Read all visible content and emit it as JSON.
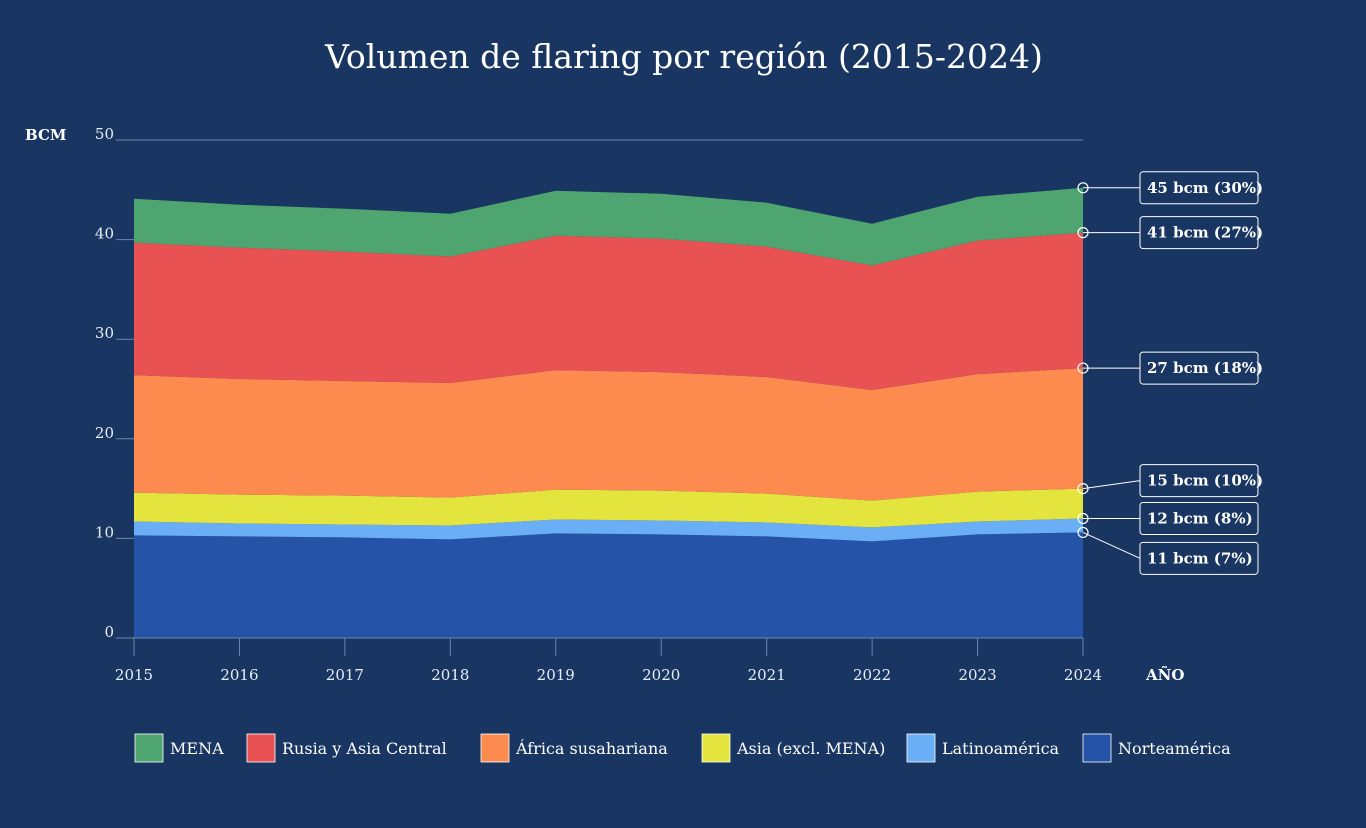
{
  "chart_data": {
    "type": "area",
    "stacked": true,
    "title": "Volumen de flaring por región (2015-2024)",
    "ylabel": "BCM",
    "xlabel": "AÑO",
    "ylim": [
      0,
      50
    ],
    "yticks": [
      0,
      10,
      20,
      30,
      40,
      50
    ],
    "grid": "top line only",
    "legend_position": "bottom",
    "x": [
      "2015",
      "2016",
      "2017",
      "2018",
      "2019",
      "2020",
      "2021",
      "2022",
      "2023",
      "2024"
    ],
    "series": [
      {
        "name": "Norteamérica",
        "color": "#2553a8",
        "values": [
          10.3,
          10.2,
          10.1,
          9.9,
          10.5,
          10.4,
          10.2,
          9.7,
          10.4,
          10.6
        ]
      },
      {
        "name": "Latinoamérica",
        "color": "#6aaef5",
        "values": [
          1.4,
          1.3,
          1.3,
          1.4,
          1.4,
          1.4,
          1.4,
          1.4,
          1.3,
          1.4
        ]
      },
      {
        "name": "Asia (excl. MENA)",
        "color": "#e4e43f",
        "values": [
          2.9,
          2.9,
          2.9,
          2.8,
          3.0,
          3.0,
          2.9,
          2.7,
          3.0,
          3.0
        ]
      },
      {
        "name": "África susahariana",
        "color": "#fd8b50",
        "values": [
          11.8,
          11.6,
          11.5,
          11.5,
          12.0,
          11.9,
          11.7,
          11.1,
          11.8,
          12.1
        ]
      },
      {
        "name": "Rusia y Asia Central",
        "color": "#e85252",
        "values": [
          13.3,
          13.2,
          13.0,
          12.7,
          13.5,
          13.4,
          13.1,
          12.5,
          13.4,
          13.6
        ]
      },
      {
        "name": "MENA",
        "color": "#4ea56f",
        "values": [
          4.4,
          4.3,
          4.3,
          4.3,
          4.5,
          4.5,
          4.4,
          4.2,
          4.4,
          4.5
        ]
      }
    ],
    "legend": [
      {
        "name": "MENA",
        "color": "#4ea56f"
      },
      {
        "name": "Rusia y Asia Central",
        "color": "#e85252"
      },
      {
        "name": "África susahariana",
        "color": "#fd8b50"
      },
      {
        "name": "Asia (excl. MENA)",
        "color": "#e4e43f"
      },
      {
        "name": "Latinoamérica",
        "color": "#6aaef5"
      },
      {
        "name": "Norteamérica",
        "color": "#2553a8"
      }
    ],
    "annotations": [
      {
        "text": "45 bcm (30%)",
        "value": 45.2,
        "box_value": 45.2
      },
      {
        "text": "41 bcm (27%)",
        "value": 40.7,
        "box_value": 40.7
      },
      {
        "text": "27 bcm (18%)",
        "value": 27.1,
        "box_value": 27.1
      },
      {
        "text": "15 bcm (10%)",
        "value": 15.0,
        "box_value": 15.8
      },
      {
        "text": "12 bcm (8%)",
        "value": 12.0,
        "box_value": 12.0
      },
      {
        "text": "11 bcm (7%)",
        "value": 10.6,
        "box_value": 8.0
      }
    ]
  }
}
